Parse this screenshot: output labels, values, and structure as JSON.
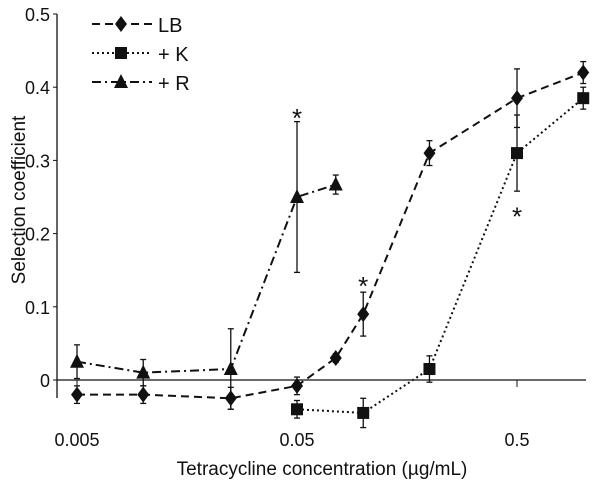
{
  "chart_data": {
    "type": "line",
    "title": "",
    "xlabel": "Tetracycline concentration (µg/mL)",
    "ylabel": "Selection coefficient",
    "xscale": "log",
    "xlim": [
      0.0045,
      1.1
    ],
    "ylim": [
      -0.05,
      0.5
    ],
    "xticks": [
      {
        "v": 0.005,
        "label": "0.005"
      },
      {
        "v": 0.05,
        "label": "0.05"
      },
      {
        "v": 0.5,
        "label": "0.5"
      }
    ],
    "yticks": [
      {
        "v": 0,
        "label": "0"
      },
      {
        "v": 0.1,
        "label": "0.1"
      },
      {
        "v": 0.2,
        "label": "0.2"
      },
      {
        "v": 0.3,
        "label": "0.3"
      },
      {
        "v": 0.4,
        "label": "0.4"
      },
      {
        "v": 0.5,
        "label": "0.5"
      }
    ],
    "legend_position": "top-left",
    "series": [
      {
        "name": "LB",
        "label": "LB",
        "marker": "diamond",
        "dash": "8,5",
        "x": [
          0.005,
          0.01,
          0.025,
          0.05,
          0.075,
          0.1,
          0.2,
          0.5,
          1.0
        ],
        "y": [
          -0.02,
          -0.02,
          -0.025,
          -0.008,
          0.03,
          0.09,
          0.31,
          0.385,
          0.42
        ],
        "err": [
          0.012,
          0.012,
          0.015,
          0.012,
          0.006,
          0.03,
          0.017,
          0.04,
          0.015
        ]
      },
      {
        "name": "+K",
        "label": "+ K",
        "marker": "square",
        "dash": "2,3",
        "x": [
          0.05,
          0.1,
          0.2,
          0.5,
          1.0
        ],
        "y": [
          -0.04,
          -0.045,
          0.015,
          0.31,
          0.385
        ],
        "err": [
          0.012,
          0.02,
          0.018,
          0.052,
          0.015
        ]
      },
      {
        "name": "+R",
        "label": "+ R",
        "marker": "triangle",
        "dash": "9,4,2,4",
        "x": [
          0.005,
          0.01,
          0.025,
          0.05,
          0.075
        ],
        "y": [
          0.025,
          0.01,
          0.015,
          0.25,
          0.267
        ],
        "err": [
          0.023,
          0.018,
          0.055,
          0.103,
          0.013
        ]
      }
    ],
    "annotations": [
      {
        "text": "*",
        "x": 0.05,
        "y": 0.365
      },
      {
        "text": "*",
        "x": 0.1,
        "y": 0.135
      },
      {
        "text": "*",
        "x": 0.5,
        "y": 0.23
      }
    ]
  }
}
